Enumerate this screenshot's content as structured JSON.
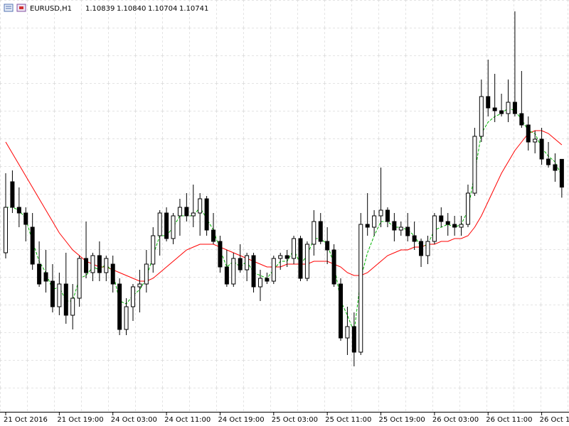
{
  "chart_data": {
    "type": "candlestick",
    "symbol": "EURUSD,H1",
    "last_quote": [
      "1.10839",
      "1.10840",
      "1.10704",
      "1.10741"
    ],
    "x": [
      "21 Oct 2016",
      null,
      null,
      null,
      null,
      null,
      null,
      null,
      "21 Oct 19:00",
      null,
      null,
      null,
      null,
      null,
      null,
      null,
      "24 Oct 03:00",
      null,
      null,
      null,
      null,
      null,
      null,
      null,
      "24 Oct 11:00",
      null,
      null,
      null,
      null,
      null,
      null,
      null,
      "24 Oct 19:00",
      null,
      null,
      null,
      null,
      null,
      null,
      null,
      "25 Oct 03:00",
      null,
      null,
      null,
      null,
      null,
      null,
      null,
      "25 Oct 11:00",
      null,
      null,
      null,
      null,
      null,
      null,
      null,
      "25 Oct 19:00",
      null,
      null,
      null,
      null,
      null,
      null,
      null,
      "26 Oct 03:00",
      null,
      null,
      null,
      null,
      null,
      null,
      null,
      "26 Oct 11:00",
      null,
      null,
      null,
      null,
      null,
      null,
      null,
      "26 Oct 1",
      null,
      null,
      null
    ],
    "open": [
      1.1051,
      1.1076,
      1.1067,
      1.1065,
      1.106,
      1.1047,
      1.1044,
      1.1041,
      1.1032,
      1.104,
      1.1029,
      1.1035,
      1.1049,
      1.1044,
      1.105,
      1.1044,
      1.1047,
      1.104,
      1.1024,
      1.1032,
      1.1039,
      1.104,
      1.1047,
      1.1057,
      1.1065,
      1.1056,
      1.1064,
      1.1067,
      1.1064,
      1.1065,
      1.107,
      1.1059,
      1.1055,
      1.1046,
      1.104,
      1.1049,
      1.1045,
      1.105,
      1.1039,
      1.1042,
      1.1041,
      1.1049,
      1.105,
      1.1049,
      1.1056,
      1.1042,
      1.1054,
      1.1062,
      1.1055,
      1.1052,
      1.104,
      1.1021,
      1.1025,
      1.1016,
      1.1061,
      1.106,
      1.1064,
      1.1066,
      1.1062,
      1.1059,
      1.106,
      1.1057,
      1.1055,
      1.105,
      1.1055,
      1.1064,
      1.1062,
      1.1061,
      1.106,
      1.1061,
      1.1072,
      1.1092,
      1.1106,
      1.1102,
      1.1101,
      1.11,
      1.1104,
      1.11,
      1.1096,
      1.109,
      1.1091,
      1.1084,
      1.1082,
      1.10839
    ],
    "high": [
      1.1079,
      1.108,
      1.1074,
      1.1067,
      1.1065,
      1.1055,
      1.1052,
      1.1047,
      1.1044,
      1.1051,
      1.104,
      1.105,
      1.1062,
      1.1051,
      1.1055,
      1.105,
      1.105,
      1.1042,
      1.1035,
      1.104,
      1.1045,
      1.1052,
      1.106,
      1.1066,
      1.1067,
      1.1065,
      1.107,
      1.1072,
      1.1075,
      1.1072,
      1.1071,
      1.1065,
      1.1057,
      1.1052,
      1.1051,
      1.1054,
      1.1051,
      1.1051,
      1.1045,
      1.1044,
      1.105,
      1.1051,
      1.1052,
      1.1057,
      1.1057,
      1.1055,
      1.1066,
      1.1065,
      1.106,
      1.1054,
      1.1042,
      1.1032,
      1.103,
      1.1065,
      1.1072,
      1.1066,
      1.1081,
      1.1067,
      1.1065,
      1.1062,
      1.1065,
      1.1062,
      1.1056,
      1.1057,
      1.1065,
      1.1067,
      1.1065,
      1.1064,
      1.1064,
      1.1075,
      1.1095,
      1.1112,
      1.1119,
      1.1114,
      1.1107,
      1.1112,
      1.1136,
      1.1115,
      1.1099,
      1.1094,
      1.1095,
      1.109,
      1.1086,
      1.1084
    ],
    "low": [
      1.1049,
      1.1065,
      1.106,
      1.1055,
      1.1045,
      1.1039,
      1.1037,
      1.103,
      1.1029,
      1.1026,
      1.1024,
      1.1032,
      1.1042,
      1.1041,
      1.1041,
      1.1041,
      1.1037,
      1.1022,
      1.1022,
      1.1027,
      1.103,
      1.1037,
      1.1044,
      1.105,
      1.1055,
      1.1054,
      1.1057,
      1.1062,
      1.106,
      1.1057,
      1.1057,
      1.1054,
      1.1044,
      1.1039,
      1.1039,
      1.1044,
      1.1041,
      1.1037,
      1.1034,
      1.104,
      1.104,
      1.1045,
      1.1046,
      1.1047,
      1.1041,
      1.1041,
      1.105,
      1.1054,
      1.1047,
      1.1039,
      1.102,
      1.1015,
      1.1011,
      1.1015,
      1.1057,
      1.1057,
      1.106,
      1.106,
      1.1055,
      1.1057,
      1.1055,
      1.1052,
      1.1046,
      1.1047,
      1.1054,
      1.106,
      1.1057,
      1.1057,
      1.1057,
      1.106,
      1.1071,
      1.109,
      1.1099,
      1.1097,
      1.1099,
      1.1097,
      1.1099,
      1.1095,
      1.1087,
      1.1086,
      1.1082,
      1.1081,
      1.1076,
      1.10704
    ],
    "close": [
      1.1067,
      1.1067,
      1.1065,
      1.1061,
      1.1047,
      1.104,
      1.1041,
      1.1032,
      1.104,
      1.1029,
      1.1035,
      1.1049,
      1.1044,
      1.105,
      1.1044,
      1.1049,
      1.104,
      1.1024,
      1.1032,
      1.1039,
      1.104,
      1.1047,
      1.1057,
      1.1065,
      1.1056,
      1.1064,
      1.1067,
      1.1064,
      1.1065,
      1.107,
      1.1059,
      1.1055,
      1.1046,
      1.104,
      1.1049,
      1.1045,
      1.105,
      1.1039,
      1.1042,
      1.1041,
      1.1049,
      1.105,
      1.1049,
      1.1056,
      1.1042,
      1.1054,
      1.1062,
      1.1055,
      1.1052,
      1.104,
      1.1021,
      1.1025,
      1.1016,
      1.1061,
      1.106,
      1.1064,
      1.1066,
      1.1062,
      1.1059,
      1.106,
      1.1057,
      1.1055,
      1.105,
      1.1055,
      1.1064,
      1.1062,
      1.1061,
      1.106,
      1.1061,
      1.1072,
      1.1092,
      1.1106,
      1.1102,
      1.1101,
      1.11,
      1.1104,
      1.11,
      1.1096,
      1.109,
      1.1091,
      1.1084,
      1.1082,
      1.108,
      1.10741
    ],
    "up_color": "#ffffff",
    "down_color": "#000000",
    "series": [
      {
        "color": "#ff0000",
        "dashed": false,
        "values": [
          1.109,
          1.1086,
          1.1082,
          1.1078,
          1.1074,
          1.107,
          1.1066,
          1.1062,
          1.1058,
          1.1055,
          1.1052,
          1.105,
          1.1048,
          1.1047,
          1.1046,
          1.1046,
          1.1045,
          1.1044,
          1.1043,
          1.1042,
          1.1041,
          1.1041,
          1.1042,
          1.1044,
          1.1046,
          1.1048,
          1.105,
          1.1052,
          1.1053,
          1.1054,
          1.1054,
          1.1054,
          1.1053,
          1.1052,
          1.1051,
          1.105,
          1.1049,
          1.1048,
          1.1047,
          1.1046,
          1.1046,
          1.1046,
          1.1047,
          1.1047,
          1.1047,
          1.1047,
          1.1048,
          1.1048,
          1.1048,
          1.1047,
          1.1046,
          1.1044,
          1.1043,
          1.1043,
          1.1044,
          1.1046,
          1.1048,
          1.105,
          1.1051,
          1.1052,
          1.1052,
          1.1053,
          1.1053,
          1.1054,
          1.1054,
          1.1055,
          1.1055,
          1.1056,
          1.1056,
          1.1057,
          1.106,
          1.1064,
          1.1069,
          1.1074,
          1.1079,
          1.1083,
          1.1087,
          1.109,
          1.1093,
          1.1094,
          1.1094,
          1.1093,
          1.1091,
          1.1089
        ]
      },
      {
        "color": "#00b400",
        "dashed": true,
        "values": [
          1.1067,
          1.1067,
          1.1066,
          1.1063,
          1.1055,
          1.1048,
          1.1044,
          1.1038,
          1.1039,
          1.1034,
          1.1034,
          1.1042,
          1.1043,
          1.1046,
          1.1045,
          1.1047,
          1.1044,
          1.1034,
          1.1033,
          1.1036,
          1.1038,
          1.1042,
          1.105,
          1.1057,
          1.1057,
          1.106,
          1.1064,
          1.1064,
          1.1064,
          1.1067,
          1.1063,
          1.1059,
          1.1052,
          1.1046,
          1.1048,
          1.1046,
          1.1048,
          1.1044,
          1.1043,
          1.1042,
          1.1045,
          1.1048,
          1.1048,
          1.1052,
          1.1047,
          1.105,
          1.1056,
          1.1056,
          1.1054,
          1.1047,
          1.1034,
          1.1029,
          1.1023,
          1.1042,
          1.1051,
          1.1057,
          1.1062,
          1.1062,
          1.106,
          1.106,
          1.1059,
          1.1057,
          1.1053,
          1.1054,
          1.1059,
          1.106,
          1.1061,
          1.106,
          1.1061,
          1.1066,
          1.1079,
          1.1093,
          1.1097,
          1.1099,
          1.11,
          1.1102,
          1.1101,
          1.1098,
          1.1094,
          1.1093,
          1.1088,
          1.1085,
          1.1083,
          1.1078
        ]
      }
    ],
    "ylim": [
      1.0995,
      1.114
    ],
    "grid": true
  }
}
